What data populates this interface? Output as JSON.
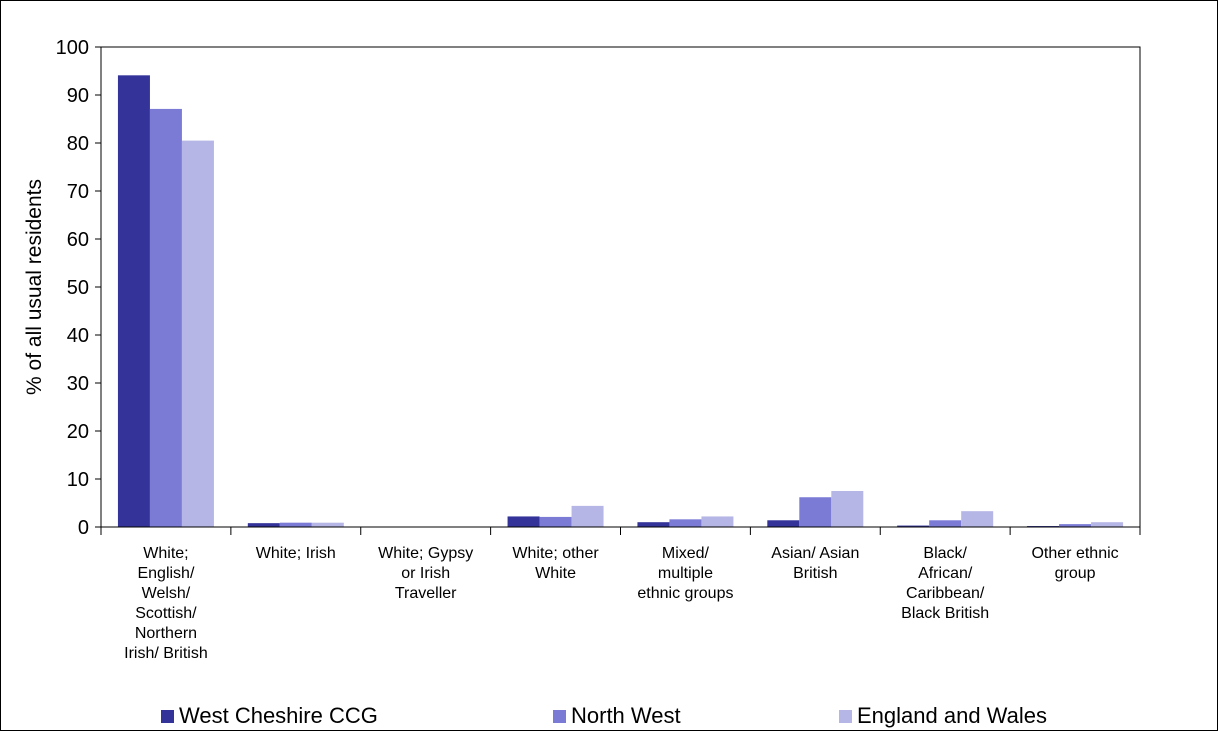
{
  "chart_data": {
    "type": "bar",
    "title": "",
    "xlabel": "",
    "ylabel": "% of all usual residents",
    "ylim": [
      0,
      100
    ],
    "yticks": [
      0,
      10,
      20,
      30,
      40,
      50,
      60,
      70,
      80,
      90,
      100
    ],
    "grid": false,
    "legend_position": "bottom",
    "categories": [
      "White;\nEnglish/\nWelsh/\nScottish/\nNorthern\nIrish/ British",
      "White; Irish",
      "White; Gypsy\nor Irish\nTraveller",
      "White; other\nWhite",
      "Mixed/\nmultiple\nethnic groups",
      "Asian/ Asian\nBritish",
      "Black/\nAfrican/\nCaribbean/\nBlack British",
      "Other ethnic\ngroup"
    ],
    "series": [
      {
        "name": "West Cheshire CCG",
        "color": "#333399",
        "values": [
          94.1,
          0.8,
          0.1,
          2.2,
          1.0,
          1.4,
          0.3,
          0.2
        ]
      },
      {
        "name": "North West",
        "color": "#7b7bd6",
        "values": [
          87.1,
          0.9,
          0.1,
          2.1,
          1.6,
          6.2,
          1.4,
          0.6
        ]
      },
      {
        "name": "England and Wales",
        "color": "#b6b6e6",
        "values": [
          80.5,
          0.9,
          0.1,
          4.4,
          2.2,
          7.5,
          3.3,
          1.0
        ]
      }
    ]
  }
}
